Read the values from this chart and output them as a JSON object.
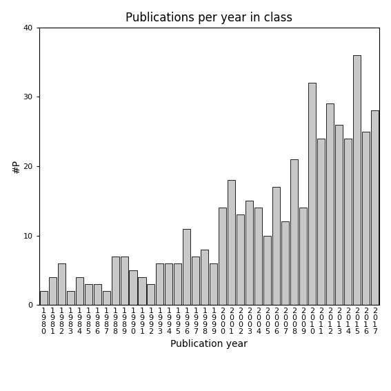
{
  "title": "Publications per year in class",
  "xlabel": "Publication year",
  "ylabel": "#P",
  "years": [
    1980,
    1981,
    1982,
    1983,
    1984,
    1985,
    1986,
    1987,
    1988,
    1989,
    1990,
    1991,
    1992,
    1993,
    1994,
    1995,
    1996,
    1997,
    1998,
    1999,
    2000,
    2001,
    2002,
    2003,
    2004,
    2005,
    2006,
    2007,
    2008,
    2009,
    2010,
    2011,
    2012,
    2013,
    2014,
    2015,
    2016,
    2017
  ],
  "values": [
    2,
    4,
    6,
    2,
    4,
    3,
    3,
    2,
    7,
    7,
    5,
    4,
    3,
    6,
    6,
    6,
    11,
    7,
    8,
    6,
    14,
    18,
    13,
    15,
    14,
    10,
    17,
    12,
    21,
    14,
    32,
    24,
    29,
    26,
    24,
    36,
    25,
    28
  ],
  "bar_color": "#c8c8c8",
  "bar_edge_color": "#000000",
  "ylim": [
    0,
    40
  ],
  "yticks": [
    0,
    10,
    20,
    30,
    40
  ],
  "background_color": "#ffffff",
  "title_fontsize": 12,
  "axis_label_fontsize": 10,
  "tick_fontsize": 8
}
